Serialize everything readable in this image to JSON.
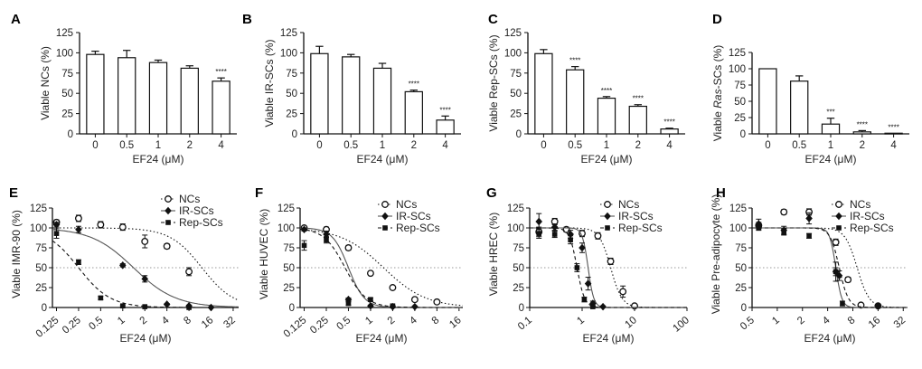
{
  "figure": {
    "panels": [
      "A",
      "B",
      "C",
      "D",
      "E",
      "F",
      "G",
      "H"
    ],
    "colors": {
      "line": "#111111",
      "bar_fill": "#ffffff",
      "fit_solid": "#555555",
      "reference": "#999999"
    }
  },
  "chart_data": [
    {
      "panel": "A",
      "type": "bar",
      "categories": [
        "0",
        "0.5",
        "1",
        "2",
        "4"
      ],
      "values": [
        98,
        94,
        88,
        81,
        65
      ],
      "errors": [
        4,
        9,
        3,
        3,
        4
      ],
      "annotations": [
        "",
        "",
        "",
        "",
        "****"
      ],
      "xlabel": "EF24 (μM)",
      "ylabel": "Viable NCs (%)",
      "ylim": [
        0,
        125
      ],
      "yticks": [
        "0",
        "25",
        "50",
        "75",
        "100",
        "125"
      ]
    },
    {
      "panel": "B",
      "type": "bar",
      "categories": [
        "0",
        "0.5",
        "1",
        "2",
        "4"
      ],
      "values": [
        99,
        95,
        81,
        52,
        17
      ],
      "errors": [
        9,
        3,
        6,
        2,
        5
      ],
      "annotations": [
        "",
        "",
        "",
        "****",
        "****"
      ],
      "xlabel": "EF24 (μM)",
      "ylabel": "Viable IR-SCs (%)",
      "ylim": [
        0,
        125
      ],
      "yticks": [
        "0",
        "25",
        "50",
        "75",
        "100",
        "125"
      ]
    },
    {
      "panel": "C",
      "type": "bar",
      "categories": [
        "0",
        "0.5",
        "1",
        "2",
        "4"
      ],
      "values": [
        99,
        79,
        44,
        34,
        6
      ],
      "errors": [
        5,
        4,
        2,
        2,
        1
      ],
      "annotations": [
        "",
        "****",
        "****",
        "****",
        "****"
      ],
      "xlabel": "EF24 (μM)",
      "ylabel": "Viable Rep-SCs (%)",
      "ylim": [
        0,
        125
      ],
      "yticks": [
        "0",
        "25",
        "50",
        "75",
        "100",
        "125"
      ]
    },
    {
      "panel": "D",
      "type": "bar",
      "categories": [
        "0",
        "0.5",
        "1",
        "2",
        "4"
      ],
      "values": [
        100,
        81,
        15,
        3,
        1
      ],
      "errors": [
        0,
        8,
        9,
        2,
        0
      ],
      "annotations": [
        "",
        "",
        "***",
        "****",
        "****"
      ],
      "xlabel": "EF24 (μM)",
      "ylabel_prefix": "Viable ",
      "ylabel_italic": "Ras",
      "ylabel_suffix": "-SCs (%)",
      "ylim": [
        0,
        125
      ],
      "yticks": [
        "0",
        "25",
        "50",
        "75",
        "100",
        "125"
      ]
    },
    {
      "panel": "E",
      "type": "scatter",
      "xscale": "log",
      "xlim": [
        0.11,
        38
      ],
      "xticks": [
        "0.125",
        "0.25",
        "0.5",
        "1",
        "2",
        "4",
        "8",
        "16",
        "32"
      ],
      "ylim": [
        0,
        125
      ],
      "yticks": [
        "0",
        "25",
        "50",
        "75",
        "100",
        "125"
      ],
      "xlabel": "EF24 (μM)",
      "ylabel": "Viable IMR-90 (%)",
      "reference_y": 50,
      "series": [
        {
          "name": "NCs",
          "marker": "circle",
          "fit": "dotted",
          "ec50": 12,
          "hill": 2,
          "x": [
            0.125,
            0.25,
            0.5,
            1,
            2,
            4,
            8
          ],
          "y": [
            107,
            112,
            104,
            101,
            83,
            77,
            45
          ],
          "err": [
            3,
            4,
            4,
            4,
            8,
            3,
            5
          ]
        },
        {
          "name": "IR-SCs",
          "marker": "diamond",
          "fit": "solid",
          "ec50": 1.4,
          "hill": 1.5,
          "x": [
            0.125,
            0.25,
            1,
            2,
            4,
            8,
            16
          ],
          "y": [
            104,
            98,
            53,
            36,
            4,
            2,
            0
          ],
          "err": [
            3,
            4,
            2,
            4,
            1,
            1,
            1
          ]
        },
        {
          "name": "Rep-SCs",
          "marker": "square",
          "fit": "dashed",
          "ec50": 0.25,
          "hill": 2,
          "x": [
            0.125,
            0.25,
            0.5,
            1,
            2,
            8
          ],
          "y": [
            93,
            57,
            12,
            2,
            1,
            0
          ],
          "err": [
            6,
            3,
            2,
            1,
            1,
            1
          ]
        }
      ]
    },
    {
      "panel": "F",
      "type": "scatter",
      "xscale": "log",
      "xlim": [
        0.11,
        18
      ],
      "xticks": [
        "0.125",
        "0.25",
        "0.5",
        "1",
        "2",
        "4",
        "8",
        "16"
      ],
      "ylim": [
        0,
        125
      ],
      "yticks": [
        "0",
        "25",
        "50",
        "75",
        "100",
        "125"
      ],
      "xlabel": "EF24 (μM)",
      "ylabel": "Viable HUVEC (%)",
      "reference_y": 50,
      "series": [
        {
          "name": "NCs",
          "marker": "circle",
          "fit": "dotted",
          "ec50": 1.5,
          "hill": 1.5,
          "x": [
            0.125,
            0.25,
            0.5,
            1,
            2,
            4,
            8
          ],
          "y": [
            100,
            98,
            75,
            43,
            25,
            10,
            7
          ],
          "err": [
            2,
            3,
            3,
            2,
            2,
            1,
            1
          ]
        },
        {
          "name": "IR-SCs",
          "marker": "diamond",
          "fit": "solid",
          "ec50": 0.5,
          "hill": 4,
          "x": [
            0.125,
            0.25,
            0.5,
            1,
            2,
            4
          ],
          "y": [
            98,
            92,
            10,
            2,
            1,
            1
          ],
          "err": [
            2,
            4,
            2,
            1,
            1,
            1
          ]
        },
        {
          "name": "Rep-SCs",
          "marker": "square",
          "fit": "dashed",
          "ec50": 0.45,
          "hill": 3,
          "x": [
            0.125,
            0.25,
            0.5,
            1,
            2
          ],
          "y": [
            78,
            85,
            5,
            10,
            2
          ],
          "err": [
            6,
            4,
            2,
            2,
            1
          ]
        }
      ]
    },
    {
      "panel": "G",
      "type": "scatter",
      "xscale": "log",
      "xlim": [
        0.1,
        100
      ],
      "xticks": [
        "0.1",
        "1",
        "10",
        "100"
      ],
      "ylim": [
        0,
        125
      ],
      "yticks": [
        "0",
        "25",
        "50",
        "75",
        "100",
        "125"
      ],
      "xlabel": "EF24 (μM)",
      "ylabel": "Viable HREC (%)",
      "reference_y": 50,
      "series": [
        {
          "name": "NCs",
          "marker": "circle",
          "fit": "dotted",
          "ec50": 3.5,
          "hill": 4,
          "x": [
            0.15,
            0.3,
            0.5,
            1,
            2,
            3.5,
            6,
            10
          ],
          "y": [
            95,
            108,
            98,
            93,
            90,
            58,
            20,
            2
          ],
          "err": [
            6,
            4,
            3,
            4,
            4,
            4,
            7,
            1
          ]
        },
        {
          "name": "IR-SCs",
          "marker": "diamond",
          "fit": "solid",
          "ec50": 1.3,
          "hill": 8,
          "x": [
            0.15,
            0.3,
            0.6,
            1,
            1.3,
            1.6,
            2.5
          ],
          "y": [
            108,
            101,
            92,
            75,
            30,
            5,
            1
          ],
          "err": [
            10,
            4,
            5,
            6,
            8,
            3,
            1
          ]
        },
        {
          "name": "Rep-SCs",
          "marker": "square",
          "fit": "dashed",
          "ec50": 0.8,
          "hill": 6,
          "x": [
            0.15,
            0.3,
            0.6,
            0.8,
            1.1,
            1.6
          ],
          "y": [
            93,
            92,
            85,
            50,
            10,
            1
          ],
          "err": [
            6,
            4,
            5,
            5,
            3,
            1
          ]
        }
      ]
    },
    {
      "panel": "H",
      "type": "scatter",
      "xscale": "log",
      "xlim": [
        0.5,
        36
      ],
      "xticks": [
        "0.5",
        "1",
        "2",
        "4",
        "8",
        "16",
        "32"
      ],
      "ylim": [
        0,
        125
      ],
      "yticks": [
        "0",
        "25",
        "50",
        "75",
        "100",
        "125"
      ],
      "xlabel": "EF24 (μM)",
      "ylabel": "Viable Pre-adipocyte (%)",
      "reference_y": 50,
      "series": [
        {
          "name": "NCs",
          "marker": "circle",
          "fit": "dotted",
          "ec50": 9,
          "hill": 6,
          "x": [
            0.6,
            1.2,
            2.4,
            5,
            7,
            10,
            16
          ],
          "y": [
            103,
            120,
            120,
            82,
            35,
            3,
            2
          ],
          "err": [
            4,
            3,
            4,
            4,
            3,
            1,
            1
          ]
        },
        {
          "name": "IR-SCs",
          "marker": "diamond",
          "fit": "solid",
          "ec50": 5,
          "hill": 12,
          "x": [
            0.6,
            1.2,
            2.4,
            5,
            5.5
          ],
          "y": [
            105,
            97,
            112,
            45,
            40
          ],
          "err": [
            6,
            5,
            7,
            12,
            6
          ]
        },
        {
          "name": "Rep-SCs",
          "marker": "square",
          "fit": "dashed",
          "ec50": 5.5,
          "hill": 8,
          "x": [
            0.6,
            1.2,
            2.4,
            5,
            6,
            16
          ],
          "y": [
            100,
            95,
            90,
            45,
            5,
            2
          ],
          "err": [
            3,
            4,
            3,
            5,
            3,
            1
          ]
        }
      ]
    }
  ]
}
